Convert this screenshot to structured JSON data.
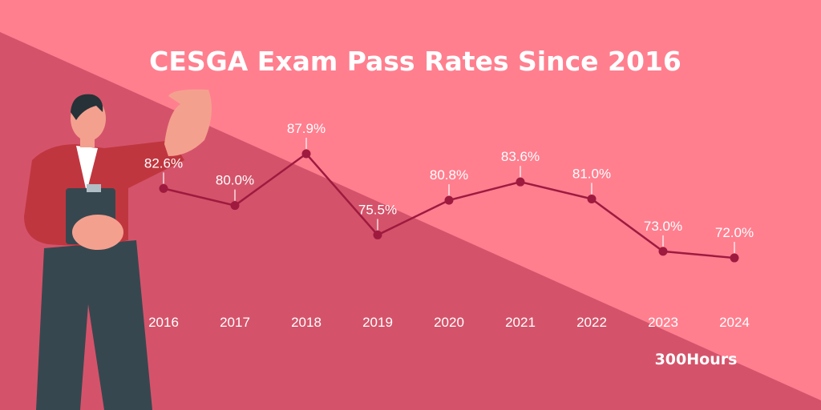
{
  "chart_data": {
    "type": "line",
    "title": "CESGA Exam Pass Rates Since 2016",
    "categories": [
      "2016",
      "2017",
      "2018",
      "2019",
      "2020",
      "2021",
      "2022",
      "2023",
      "2024"
    ],
    "values": [
      82.6,
      80.0,
      87.9,
      75.5,
      80.8,
      83.6,
      81.0,
      73.0,
      72.0
    ],
    "data_labels": [
      "82.6%",
      "80.0%",
      "87.9%",
      "75.5%",
      "80.8%",
      "83.6%",
      "81.0%",
      "73.0%",
      "72.0%"
    ],
    "xlabel": "",
    "ylabel": "",
    "grid": false,
    "legend": "none",
    "colors": {
      "line": "#9E1B3F",
      "background_light": "#FF7F8F",
      "background_dark": "#D4536A",
      "text": "#FFFFFF"
    }
  },
  "branding": {
    "logo_text": "300Hours"
  }
}
